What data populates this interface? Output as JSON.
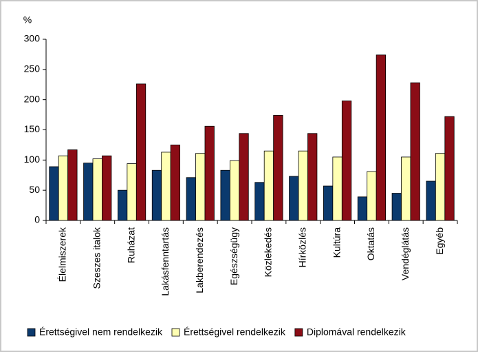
{
  "chart_data": {
    "type": "bar",
    "y_label": "%",
    "categories": [
      "Élelmiszerek",
      "Szeszes italok",
      "Ruházat",
      "Lakásfenntartás",
      "Lakberendezés",
      "Egészségügy",
      "Közlekedés",
      "Hírközlés",
      "Kultúra",
      "Oktatás",
      "Vendéglátás",
      "Egyéb"
    ],
    "series": [
      {
        "name": "Érettségivel nem rendelkezik",
        "color": "#0b3a6e",
        "values": [
          89,
          95,
          50,
          83,
          71,
          83,
          63,
          73,
          57,
          39,
          45,
          65
        ]
      },
      {
        "name": "Érettségivel rendelkezik",
        "color": "#ffffb3",
        "values": [
          107,
          102,
          94,
          113,
          111,
          99,
          115,
          115,
          105,
          81,
          105,
          111
        ]
      },
      {
        "name": "Diplomával rendelkezik",
        "color": "#8b0d16",
        "values": [
          117,
          107,
          226,
          125,
          156,
          144,
          174,
          144,
          198,
          274,
          228,
          172
        ]
      }
    ],
    "ylim": [
      0,
      300
    ],
    "yticks": [
      0,
      50,
      100,
      150,
      200,
      250,
      300
    ],
    "legend": "bottom"
  }
}
